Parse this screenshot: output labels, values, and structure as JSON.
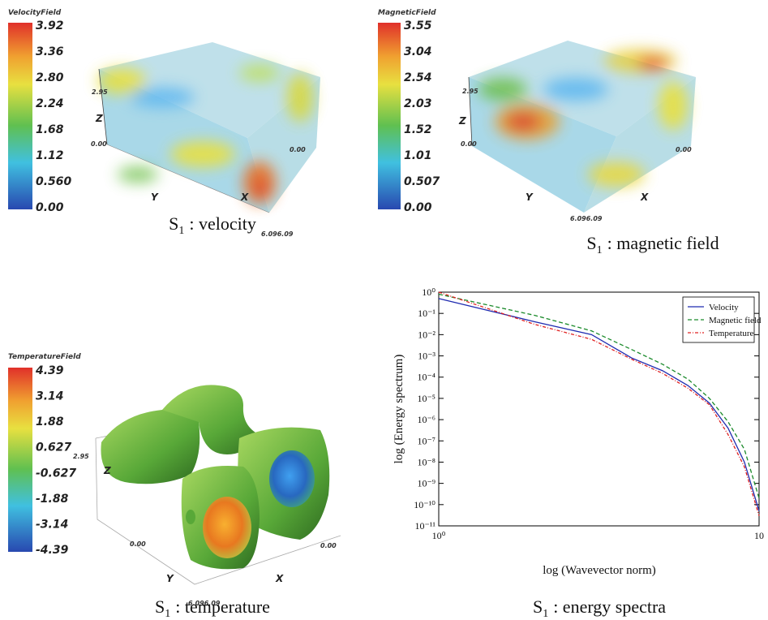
{
  "renders": [
    {
      "colorbar_title": "VelocityField",
      "colorbar_ticks": [
        "3.92",
        "3.36",
        "2.80",
        "2.24",
        "1.68",
        "1.12",
        "0.560",
        "0.00"
      ],
      "axis_labels": [
        "2.95",
        "Z",
        "0.00",
        "0.00",
        "Y",
        "X",
        "6.096.09"
      ],
      "caption": {
        "symbol": "S",
        "subscript": "1",
        "text": ": velocity"
      }
    },
    {
      "colorbar_title": "MagneticField",
      "colorbar_ticks": [
        "3.55",
        "3.04",
        "2.54",
        "2.03",
        "1.52",
        "1.01",
        "0.507",
        "0.00"
      ],
      "axis_labels": [
        "2.95",
        "Z",
        "0.00",
        "0.00",
        "Y",
        "X",
        "6.096.09"
      ],
      "caption": {
        "symbol": "S",
        "subscript": "1",
        "text": ": magnetic field"
      }
    },
    {
      "colorbar_title": "TemperatureField",
      "colorbar_ticks": [
        "4.39",
        "3.14",
        "1.88",
        "0.627",
        "-0.627",
        "-1.88",
        "-3.14",
        "-4.39"
      ],
      "axis_labels": [
        "2.95",
        "Z",
        "0.00",
        "0.00",
        "Y",
        "X",
        "6.096.09"
      ],
      "caption": {
        "symbol": "S",
        "subscript": "1",
        "text": ": temperature"
      }
    }
  ],
  "chart_data": {
    "type": "line",
    "caption": {
      "symbol": "S",
      "subscript": "1",
      "text": ": energy spectra"
    },
    "x_label": "log (Wavevector norm)",
    "y_label": "log (Energy spectrum)",
    "xscale": "log",
    "yscale": "log",
    "x": [
      1,
      2,
      3,
      4,
      5,
      6,
      7,
      8,
      9,
      10
    ],
    "series": [
      {
        "name": "Velocity",
        "color": "#1f2bb0",
        "dash": "solid",
        "values": [
          0.5,
          0.04,
          0.01,
          0.0008,
          0.0002,
          4e-05,
          6e-06,
          4e-07,
          1e-08,
          5e-11
        ]
      },
      {
        "name": "Magnetic field",
        "color": "#1a8a2a",
        "dash": "dashed",
        "values": [
          0.8,
          0.08,
          0.015,
          0.002,
          0.0004,
          8e-05,
          1e-05,
          8e-07,
          4e-08,
          2e-10
        ]
      },
      {
        "name": "Temperature",
        "color": "#e02020",
        "dash": "dashdot",
        "values": [
          1.0,
          0.03,
          0.006,
          0.0007,
          0.00015,
          3e-05,
          5e-06,
          2e-07,
          6e-09,
          3e-11
        ]
      }
    ],
    "xlim": [
      1,
      10
    ],
    "ylim": [
      1e-11,
      1
    ],
    "xticks": [
      {
        "value": 1,
        "label": "10⁰"
      },
      {
        "value": 10,
        "label": "10"
      }
    ],
    "yticks": [
      {
        "value": 1,
        "label": "10⁰"
      },
      {
        "value": 0.1,
        "label": "10⁻¹"
      },
      {
        "value": 0.01,
        "label": "10⁻²"
      },
      {
        "value": 0.001,
        "label": "10⁻³"
      },
      {
        "value": 0.0001,
        "label": "10⁻⁴"
      },
      {
        "value": 1e-05,
        "label": "10⁻⁵"
      },
      {
        "value": 1e-06,
        "label": "10⁻⁶"
      },
      {
        "value": 1e-07,
        "label": "10⁻⁷"
      },
      {
        "value": 1e-08,
        "label": "10⁻⁸"
      },
      {
        "value": 1e-09,
        "label": "10⁻⁹"
      },
      {
        "value": 1e-10,
        "label": "10⁻¹⁰"
      },
      {
        "value": 1e-11,
        "label": "10⁻¹¹"
      }
    ],
    "legend": "upper right",
    "grid": false
  }
}
